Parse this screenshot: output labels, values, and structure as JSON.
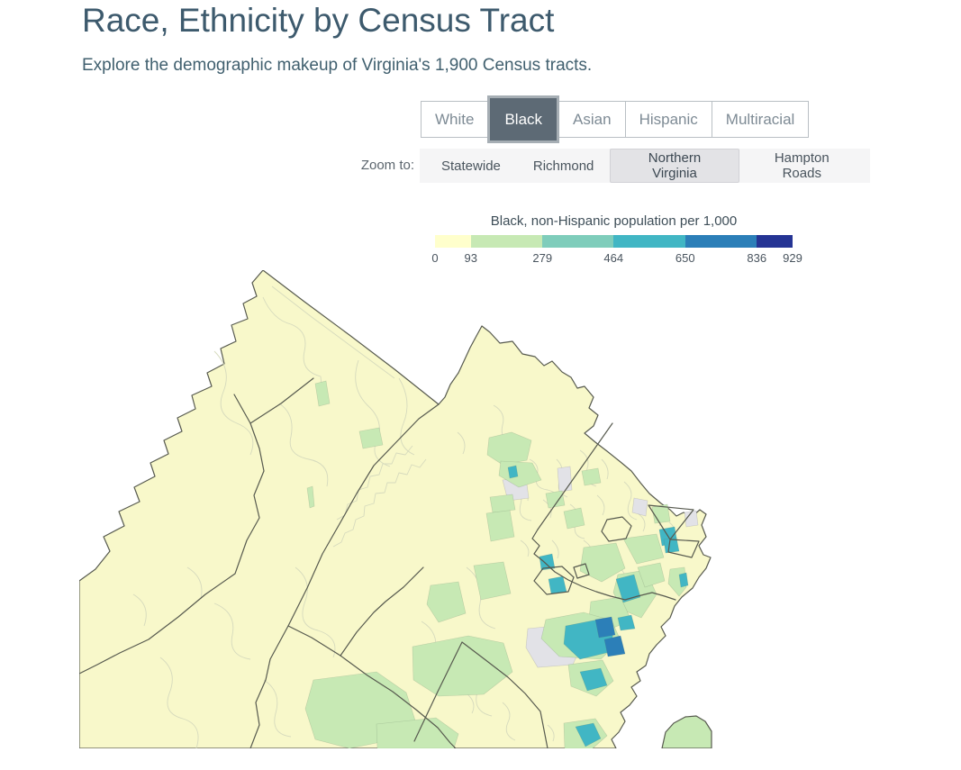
{
  "page": {
    "title": "Race, Ethnicity by Census Tract",
    "subtitle": "Explore the demographic makeup of Virginia's 1,900 Census tracts."
  },
  "race_tabs": {
    "items": [
      {
        "label": "White",
        "selected": false
      },
      {
        "label": "Black",
        "selected": true
      },
      {
        "label": "Asian",
        "selected": false
      },
      {
        "label": "Hispanic",
        "selected": false
      },
      {
        "label": "Multiracial",
        "selected": false
      }
    ]
  },
  "zoom_bar": {
    "label": "Zoom to:",
    "items": [
      {
        "label": "Statewide",
        "selected": false
      },
      {
        "label": "Richmond",
        "selected": false
      },
      {
        "label": "Northern Virginia",
        "selected": true
      },
      {
        "label": "Hampton Roads",
        "selected": false
      }
    ]
  },
  "legend": {
    "title": "Black, non-Hispanic population per 1,000",
    "breaks": [
      0,
      93,
      279,
      464,
      650,
      836,
      929
    ],
    "tick_labels": [
      "0",
      "93",
      "279",
      "464",
      "650",
      "836",
      "929"
    ],
    "colors": [
      "#ffffcc",
      "#c7e9b4",
      "#7fcdbb",
      "#41b6c4",
      "#2c7fb8",
      "#253494"
    ]
  },
  "map": {
    "type": "choropleth",
    "region_shown": "Northern Virginia",
    "value_label": "Black, non-Hispanic population per 1,000",
    "classes": [
      {
        "range": "0-93",
        "color": "#ffffcc"
      },
      {
        "range": "93-279",
        "color": "#c7e9b4"
      },
      {
        "range": "279-464",
        "color": "#7fcdbb"
      },
      {
        "range": "464-650",
        "color": "#41b6c4"
      },
      {
        "range": "650-836",
        "color": "#2c7fb8"
      },
      {
        "range": "836-929",
        "color": "#253494"
      }
    ],
    "colors": {
      "base_fill": "#f8f8ca",
      "no_data_fill": "#e2e2e7",
      "county_line": "#575a4f",
      "tract_line": "#d6dabd",
      "water_fill": "#ffffff"
    }
  }
}
